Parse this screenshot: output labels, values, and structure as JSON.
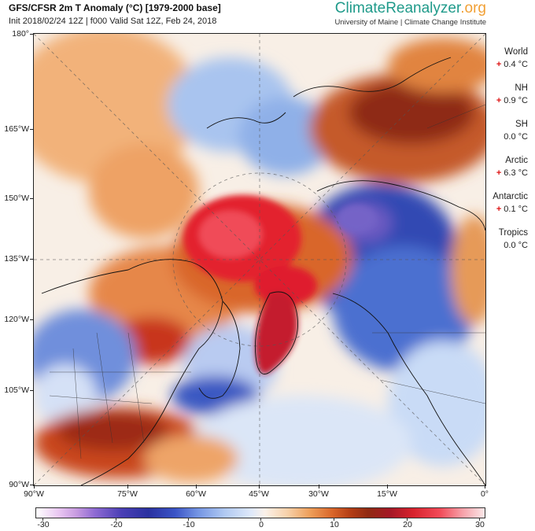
{
  "header": {
    "title": "GFS/CFSR 2m T Anomaly (°C) [1979-2000 base]",
    "subtitle": "Init 2018/02/24 12Z | f000 Valid Sat 12Z, Feb 24, 2018"
  },
  "brand": {
    "name": "ClimateReanalyzer.org",
    "parts": [
      "Climate",
      "Reanalyzer",
      ".org"
    ],
    "subtitle": "University of Maine | Climate Change Institute",
    "colors": {
      "primary": "#1f9a8a",
      "accent": "#f1a035"
    }
  },
  "map": {
    "lat_labels": [
      "180°",
      "165°W",
      "150°W",
      "135°W",
      "120°W",
      "105°W",
      "90°W"
    ],
    "lon_labels": [
      "90°W",
      "75°W",
      "60°W",
      "45°W",
      "30°W",
      "15°W",
      "0°"
    ]
  },
  "stats": [
    {
      "name": "World",
      "sign": "+",
      "value": "0.4 °C"
    },
    {
      "name": "NH",
      "sign": "+",
      "value": "0.9 °C"
    },
    {
      "name": "SH",
      "sign": "",
      "value": "0.0 °C"
    },
    {
      "name": "Arctic",
      "sign": "+",
      "value": "6.3 °C"
    },
    {
      "name": "Antarctic",
      "sign": "+",
      "value": "0.1 °C"
    },
    {
      "name": "Tropics",
      "sign": "",
      "value": "0.0 °C"
    }
  ],
  "colorbar": {
    "ticks": [
      "-30",
      "-20",
      "-10",
      "0",
      "10",
      "20",
      "30"
    ],
    "min": -30,
    "max": 30
  }
}
